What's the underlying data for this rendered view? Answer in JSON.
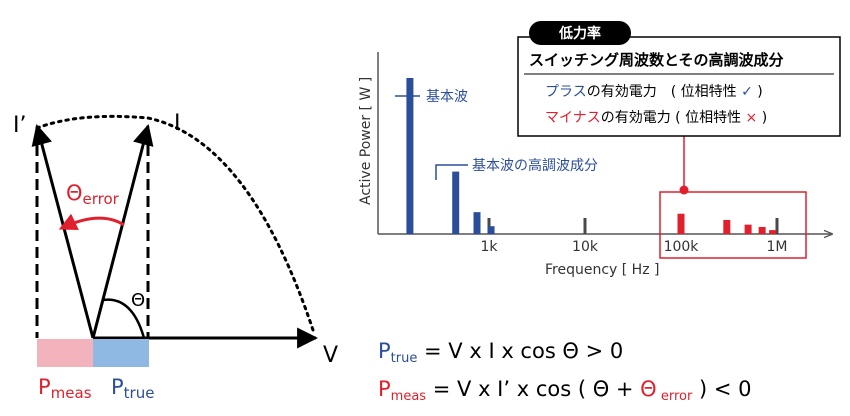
{
  "phasor": {
    "label_i_prime": "I’",
    "label_i": "I",
    "label_v": "V",
    "theta_error_main": "Θ",
    "theta_error_sub": "error",
    "theta": "Θ",
    "p_meas_main": "P",
    "p_meas_sub": "meas",
    "p_true_main": "P",
    "p_true_sub": "true"
  },
  "callout": {
    "badge": "低力率",
    "title": "スイッチング周波数とその高調波成分",
    "row1_colored": "プラス",
    "row1_rest": "の有効電力　( 位相特性 ",
    "row1_mark": "✓",
    "row1_end": " )",
    "row2_colored": "マイナス",
    "row2_rest": "の有効電力 ( 位相特性 ",
    "row2_mark": "×",
    "row2_end": " )"
  },
  "chart_data": {
    "type": "bar",
    "xlabel": "Frequency [ Hz ]",
    "ylabel": "Active Power [ W ]",
    "x_scale": "log",
    "x_ticks": [
      "1k",
      "10k",
      "100k",
      "1M"
    ],
    "annotations": [
      "基本波",
      "基本波の高調波成分"
    ],
    "series": [
      {
        "name": "基本波",
        "x": [
          150
        ],
        "values": [
          1.0
        ]
      },
      {
        "name": "基本波の高調波成分",
        "x": [
          450,
          750,
          1050
        ],
        "values": [
          0.4,
          0.14,
          0.05
        ]
      },
      {
        "name": "スイッチング周波数とその高調波成分",
        "x": [
          100000,
          300000,
          500000,
          700000,
          900000
        ],
        "values": [
          0.13,
          0.09,
          0.06,
          0.045,
          0.025
        ]
      }
    ]
  },
  "colors": {
    "blue": "#2b4e9a",
    "red": "#e0202d",
    "pink": "#f2b3bd",
    "lightblue": "#8fb9e3",
    "gray": "#4a4a4a"
  },
  "formulas": {
    "f1_p": "P",
    "f1_sub": "true",
    "f1_rest": " = V x I x cos Θ > 0",
    "f2_p": "P",
    "f2_sub": "meas",
    "f2_rest1": " = V x I’ x cos ( Θ + ",
    "f2_theta": "Θ",
    "f2_sub2": " error",
    "f2_rest2": " ) < 0"
  }
}
